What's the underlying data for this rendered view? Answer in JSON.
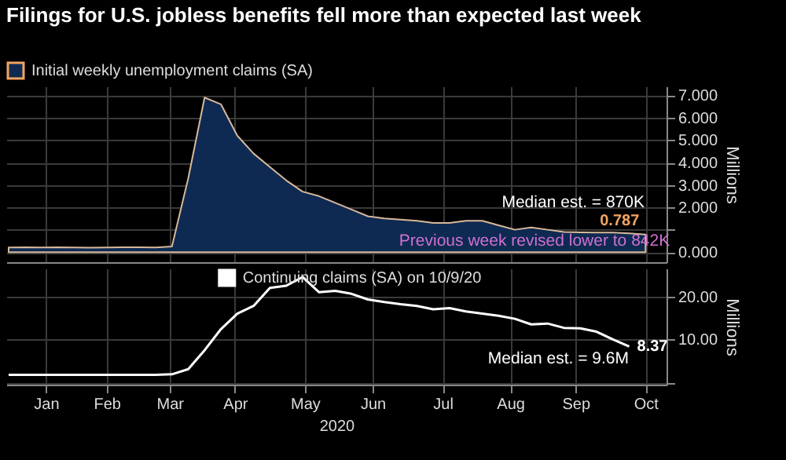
{
  "chart_data": [
    {
      "type": "area",
      "title": "Filings for U.S. jobless benefits fell more than expected last week",
      "ylabel": "Millions",
      "legend": "top left",
      "grid": true,
      "tick_labels": "y",
      "annotations": [
        "Median est. = 870K",
        "Previous week revised lower to 842K"
      ],
      "x": [
        "2020-01-04",
        "2020-01-11",
        "2020-01-18",
        "2020-01-25",
        "2020-02-01",
        "2020-02-08",
        "2020-02-15",
        "2020-02-22",
        "2020-02-29",
        "2020-03-07",
        "2020-03-14",
        "2020-03-21",
        "2020-03-28",
        "2020-04-04",
        "2020-04-11",
        "2020-04-18",
        "2020-04-25",
        "2020-05-02",
        "2020-05-09",
        "2020-05-16",
        "2020-05-23",
        "2020-05-30",
        "2020-06-06",
        "2020-06-13",
        "2020-06-20",
        "2020-06-27",
        "2020-07-04",
        "2020-07-11",
        "2020-07-18",
        "2020-07-25",
        "2020-08-01",
        "2020-08-08",
        "2020-08-15",
        "2020-08-22",
        "2020-08-29",
        "2020-09-05",
        "2020-09-12",
        "2020-09-19",
        "2020-09-26",
        "2020-10-03"
      ],
      "xlim": [
        "2020-01-03",
        "2020-10-12"
      ],
      "xticks": [
        "2020-01-20",
        "2020-02-15",
        "2020-03-13",
        "2020-04-10",
        "2020-05-10",
        "2020-06-08",
        "2020-07-08",
        "2020-08-06",
        "2020-09-03",
        "2020-10-03"
      ],
      "ylim": [
        -0.45,
        7.4
      ],
      "yticks": [
        {
          "value": 0,
          "label": "0.000"
        },
        {
          "value": 1,
          "label": null
        },
        {
          "value": 2,
          "label": "2.000"
        },
        {
          "value": 3,
          "label": "3.000"
        },
        {
          "value": 4,
          "label": "4.000"
        },
        {
          "value": 5,
          "label": "5.000"
        },
        {
          "value": 6,
          "label": "6.000"
        },
        {
          "value": 7,
          "label": "7.000"
        }
      ],
      "series": [
        {
          "name": "Initial weekly unemployment claims (SA)",
          "color": "#0e2a52",
          "values": [
            0.21,
            0.22,
            0.21,
            0.22,
            0.21,
            0.2,
            0.21,
            0.22,
            0.22,
            0.21,
            0.25,
            3.3,
            6.9,
            6.6,
            5.2,
            4.4,
            3.8,
            3.2,
            2.7,
            2.5,
            2.2,
            1.9,
            1.6,
            1.5,
            1.45,
            1.4,
            1.3,
            1.3,
            1.4,
            1.4,
            1.2,
            1.0,
            1.1,
            1.0,
            0.9,
            0.88,
            0.87,
            0.87,
            0.84,
            0.787
          ],
          "value_labels": [
            null,
            null,
            null,
            null,
            null,
            null,
            null,
            null,
            null,
            null,
            null,
            null,
            null,
            null,
            null,
            null,
            null,
            null,
            null,
            null,
            null,
            null,
            null,
            null,
            null,
            null,
            null,
            null,
            null,
            null,
            null,
            null,
            null,
            null,
            null,
            null,
            null,
            null,
            null,
            "0.787"
          ]
        }
      ]
    },
    {
      "type": "line",
      "xlabel": "2020",
      "ylabel": "Millions",
      "legend": "top",
      "grid": true,
      "annotations": [
        "Median est. = 9.6M"
      ],
      "x": [
        "2020-01-04",
        "2020-01-11",
        "2020-01-18",
        "2020-01-25",
        "2020-02-01",
        "2020-02-08",
        "2020-02-15",
        "2020-02-22",
        "2020-02-29",
        "2020-03-07",
        "2020-03-14",
        "2020-03-21",
        "2020-03-28",
        "2020-04-04",
        "2020-04-11",
        "2020-04-18",
        "2020-04-25",
        "2020-05-02",
        "2020-05-09",
        "2020-05-16",
        "2020-05-23",
        "2020-05-30",
        "2020-06-06",
        "2020-06-13",
        "2020-06-20",
        "2020-06-27",
        "2020-07-04",
        "2020-07-11",
        "2020-07-18",
        "2020-07-25",
        "2020-08-01",
        "2020-08-08",
        "2020-08-15",
        "2020-08-22",
        "2020-08-29",
        "2020-09-05",
        "2020-09-12",
        "2020-09-19",
        "2020-09-26"
      ],
      "xlim": [
        "2020-01-03",
        "2020-10-12"
      ],
      "xticks": [
        {
          "value": "2020-01-20",
          "label": "Jan"
        },
        {
          "value": "2020-02-15",
          "label": "Feb"
        },
        {
          "value": "2020-03-13",
          "label": "Mar"
        },
        {
          "value": "2020-04-10",
          "label": "Apr"
        },
        {
          "value": "2020-05-10",
          "label": "May"
        },
        {
          "value": "2020-06-08",
          "label": "Jun"
        },
        {
          "value": "2020-07-08",
          "label": "Jul"
        },
        {
          "value": "2020-08-06",
          "label": "Aug"
        },
        {
          "value": "2020-09-03",
          "label": "Sep"
        },
        {
          "value": "2020-10-03",
          "label": "Oct"
        }
      ],
      "ylim": [
        -0.5,
        26.5
      ],
      "yticks": [
        {
          "value": 0,
          "label": null
        },
        {
          "value": 10,
          "label": "10.00"
        },
        {
          "value": 20,
          "label": "20.00"
        }
      ],
      "series": [
        {
          "name": "Continuing claims (SA) on 10/9/20",
          "color": "#ffffff",
          "values": [
            1.8,
            1.8,
            1.8,
            1.8,
            1.8,
            1.8,
            1.8,
            1.8,
            1.8,
            1.8,
            1.9,
            3.1,
            7.5,
            12.4,
            16.0,
            17.8,
            22.0,
            22.5,
            24.5,
            21.0,
            21.3,
            20.6,
            19.3,
            18.7,
            18.2,
            17.8,
            17.0,
            17.3,
            16.5,
            16.0,
            15.5,
            14.8,
            13.5,
            13.7,
            12.7,
            12.6,
            11.8,
            10.0,
            8.37
          ],
          "value_labels": [
            null,
            null,
            null,
            null,
            null,
            null,
            null,
            null,
            null,
            null,
            null,
            null,
            null,
            null,
            null,
            null,
            null,
            null,
            null,
            null,
            null,
            null,
            null,
            null,
            null,
            null,
            null,
            null,
            null,
            null,
            null,
            null,
            null,
            null,
            null,
            null,
            null,
            null,
            "8.37"
          ]
        }
      ]
    }
  ]
}
